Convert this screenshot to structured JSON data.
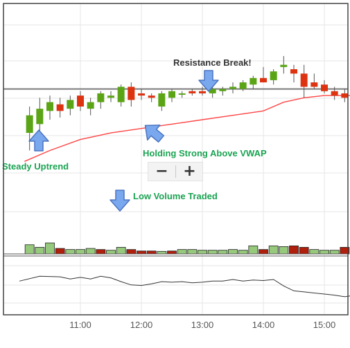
{
  "colors": {
    "up": "#5ba416",
    "down": "#dd3311",
    "vol_up": "#96c97c",
    "vol_down": "#b01e0c",
    "vwap": "#ff4444",
    "resistance": "#7a7a7a",
    "indicator": "#333333",
    "annotation_green": "#1aa352",
    "annotation_dark": "#333333",
    "arrow_fill": "#7aa8ee",
    "arrow_stroke": "#4a74c0",
    "grid": "#e6e6e6",
    "border": "#444444"
  },
  "icons": {
    "arrow": "arrow-icon",
    "zoom_out": "minus-icon",
    "zoom_in": "plus-icon"
  },
  "annotations": {
    "resistance": "Resistance Break!",
    "vwap": "Holding Strong Above VWAP",
    "uptrend": "Steady Uptrend",
    "volume": "Low Volume Traded"
  },
  "zoom": {
    "minus": "−",
    "plus": "+"
  },
  "chart_data": {
    "type": "candlestick",
    "title": "",
    "x_axis": {
      "ticks": [
        "11:00",
        "12:00",
        "13:00",
        "14:00",
        "15:00"
      ],
      "range": [
        "10:05",
        "15:30"
      ]
    },
    "grid": true,
    "price_ylim": [
      0.8,
      10.0
    ],
    "resistance_level": 6.2,
    "candles": [
      {
        "t": "10:10",
        "o": 4.2,
        "h": 5.4,
        "l": 3.4,
        "c": 5.0
      },
      {
        "t": "10:20",
        "o": 4.6,
        "h": 5.8,
        "l": 4.0,
        "c": 5.3
      },
      {
        "t": "10:30",
        "o": 5.2,
        "h": 5.9,
        "l": 4.8,
        "c": 5.6
      },
      {
        "t": "10:40",
        "o": 5.5,
        "h": 5.8,
        "l": 4.9,
        "c": 5.2
      },
      {
        "t": "10:50",
        "o": 5.3,
        "h": 5.9,
        "l": 5.0,
        "c": 5.7
      },
      {
        "t": "11:00",
        "o": 5.9,
        "h": 6.1,
        "l": 5.2,
        "c": 5.4
      },
      {
        "t": "11:10",
        "o": 5.3,
        "h": 5.8,
        "l": 5.0,
        "c": 5.6
      },
      {
        "t": "11:20",
        "o": 5.6,
        "h": 6.1,
        "l": 5.3,
        "c": 6.0
      },
      {
        "t": "11:30",
        "o": 5.8,
        "h": 6.1,
        "l": 5.6,
        "c": 5.9
      },
      {
        "t": "11:40",
        "o": 5.6,
        "h": 6.4,
        "l": 5.4,
        "c": 6.3
      },
      {
        "t": "11:50",
        "o": 6.3,
        "h": 6.5,
        "l": 5.4,
        "c": 5.7
      },
      {
        "t": "12:00",
        "o": 6.0,
        "h": 6.2,
        "l": 5.7,
        "c": 5.9
      },
      {
        "t": "12:10",
        "o": 5.9,
        "h": 6.0,
        "l": 5.6,
        "c": 5.8
      },
      {
        "t": "12:20",
        "o": 5.4,
        "h": 6.1,
        "l": 5.2,
        "c": 6.0
      },
      {
        "t": "12:30",
        "o": 5.8,
        "h": 6.2,
        "l": 5.6,
        "c": 6.1
      },
      {
        "t": "12:40",
        "o": 6.0,
        "h": 6.1,
        "l": 5.8,
        "c": 6.0
      },
      {
        "t": "12:50",
        "o": 6.1,
        "h": 6.2,
        "l": 5.9,
        "c": 6.0
      },
      {
        "t": "13:00",
        "o": 6.1,
        "h": 6.3,
        "l": 5.9,
        "c": 6.0
      },
      {
        "t": "13:10",
        "o": 6.0,
        "h": 6.3,
        "l": 5.8,
        "c": 6.2
      },
      {
        "t": "13:20",
        "o": 6.1,
        "h": 6.3,
        "l": 5.9,
        "c": 6.2
      },
      {
        "t": "13:30",
        "o": 6.2,
        "h": 6.5,
        "l": 6.0,
        "c": 6.3
      },
      {
        "t": "13:40",
        "o": 6.2,
        "h": 6.6,
        "l": 6.1,
        "c": 6.5
      },
      {
        "t": "13:50",
        "o": 6.4,
        "h": 6.8,
        "l": 6.2,
        "c": 6.7
      },
      {
        "t": "14:00",
        "o": 6.7,
        "h": 7.2,
        "l": 6.5,
        "c": 6.5
      },
      {
        "t": "14:10",
        "o": 6.6,
        "h": 7.1,
        "l": 6.4,
        "c": 7.0
      },
      {
        "t": "14:20",
        "o": 7.2,
        "h": 7.7,
        "l": 6.9,
        "c": 7.3
      },
      {
        "t": "14:30",
        "o": 7.1,
        "h": 7.3,
        "l": 6.5,
        "c": 6.9
      },
      {
        "t": "14:40",
        "o": 6.9,
        "h": 7.3,
        "l": 5.8,
        "c": 6.3
      },
      {
        "t": "14:50",
        "o": 6.5,
        "h": 6.9,
        "l": 6.2,
        "c": 6.3
      },
      {
        "t": "15:00",
        "o": 6.4,
        "h": 6.6,
        "l": 6.0,
        "c": 6.1
      },
      {
        "t": "15:10",
        "o": 6.1,
        "h": 6.3,
        "l": 5.7,
        "c": 5.9
      },
      {
        "t": "15:20",
        "o": 6.0,
        "h": 6.2,
        "l": 5.6,
        "c": 5.8
      },
      {
        "t": "15:30",
        "o": 5.9,
        "h": 6.1,
        "l": 5.7,
        "c": 5.8
      }
    ],
    "vwap": {
      "name": "VWAP",
      "x": [
        "10:05",
        "10:30",
        "11:00",
        "11:30",
        "12:00",
        "12:30",
        "13:00",
        "13:30",
        "14:00",
        "14:20",
        "14:40",
        "15:00",
        "15:30"
      ],
      "values": [
        2.9,
        3.4,
        3.9,
        4.2,
        4.4,
        4.6,
        4.8,
        5.0,
        5.2,
        5.6,
        5.8,
        5.9,
        5.9
      ]
    },
    "volume": [
      {
        "t": "10:10",
        "v": 2.5,
        "dir": "up"
      },
      {
        "t": "10:20",
        "v": 1.8,
        "dir": "up"
      },
      {
        "t": "10:30",
        "v": 3.0,
        "dir": "up"
      },
      {
        "t": "10:40",
        "v": 1.5,
        "dir": "down"
      },
      {
        "t": "10:50",
        "v": 1.2,
        "dir": "up"
      },
      {
        "t": "11:00",
        "v": 1.2,
        "dir": "up"
      },
      {
        "t": "11:10",
        "v": 1.5,
        "dir": "up"
      },
      {
        "t": "11:20",
        "v": 1.2,
        "dir": "down"
      },
      {
        "t": "11:30",
        "v": 1.0,
        "dir": "up"
      },
      {
        "t": "11:40",
        "v": 1.8,
        "dir": "up"
      },
      {
        "t": "11:50",
        "v": 1.2,
        "dir": "down"
      },
      {
        "t": "12:00",
        "v": 0.8,
        "dir": "down"
      },
      {
        "t": "12:10",
        "v": 0.8,
        "dir": "down"
      },
      {
        "t": "12:20",
        "v": 0.7,
        "dir": "up"
      },
      {
        "t": "12:30",
        "v": 0.8,
        "dir": "down"
      },
      {
        "t": "12:40",
        "v": 1.2,
        "dir": "up"
      },
      {
        "t": "12:50",
        "v": 1.2,
        "dir": "up"
      },
      {
        "t": "13:00",
        "v": 1.0,
        "dir": "up"
      },
      {
        "t": "13:10",
        "v": 1.0,
        "dir": "up"
      },
      {
        "t": "13:20",
        "v": 1.0,
        "dir": "up"
      },
      {
        "t": "13:30",
        "v": 1.2,
        "dir": "up"
      },
      {
        "t": "13:40",
        "v": 1.0,
        "dir": "up"
      },
      {
        "t": "13:50",
        "v": 2.2,
        "dir": "up"
      },
      {
        "t": "14:00",
        "v": 1.2,
        "dir": "down"
      },
      {
        "t": "14:10",
        "v": 2.2,
        "dir": "up"
      },
      {
        "t": "14:20",
        "v": 2.0,
        "dir": "up"
      },
      {
        "t": "14:30",
        "v": 2.2,
        "dir": "down"
      },
      {
        "t": "14:40",
        "v": 1.8,
        "dir": "down"
      },
      {
        "t": "14:50",
        "v": 1.2,
        "dir": "up"
      },
      {
        "t": "15:00",
        "v": 1.0,
        "dir": "up"
      },
      {
        "t": "15:10",
        "v": 1.0,
        "dir": "up"
      },
      {
        "t": "15:20",
        "v": 1.8,
        "dir": "down"
      },
      {
        "t": "15:30",
        "v": 1.5,
        "dir": "up"
      }
    ],
    "indicator": {
      "x": [
        "10:00",
        "10:20",
        "10:40",
        "10:50",
        "11:00",
        "11:10",
        "11:20",
        "11:30",
        "11:40",
        "11:50",
        "12:00",
        "12:10",
        "12:20",
        "12:30",
        "12:40",
        "12:50",
        "13:00",
        "13:10",
        "13:20",
        "13:30",
        "13:40",
        "13:50",
        "14:00",
        "14:10",
        "14:20",
        "14:30",
        "14:40",
        "14:50",
        "15:00",
        "15:10",
        "15:20",
        "15:30"
      ],
      "values": [
        5.6,
        6.5,
        6.4,
        6.0,
        6.3,
        6.0,
        6.5,
        6.2,
        5.5,
        4.9,
        4.8,
        5.1,
        5.5,
        5.4,
        5.5,
        5.3,
        5.4,
        5.6,
        5.6,
        5.9,
        5.6,
        5.8,
        5.7,
        5.9,
        4.7,
        3.8,
        3.6,
        3.4,
        3.2,
        3.0,
        2.7,
        3.0
      ],
      "ylim": [
        0,
        10
      ]
    }
  }
}
